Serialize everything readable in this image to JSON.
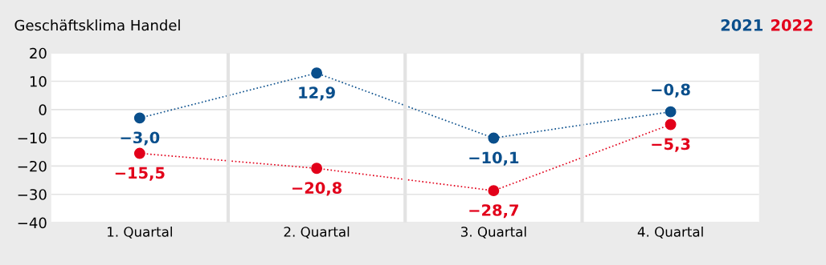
{
  "chart_data": {
    "type": "line",
    "title": "Geschäftsklima Handel",
    "categories": [
      "1. Quartal",
      "2. Quartal",
      "3. Quartal",
      "4. Quartal"
    ],
    "series": [
      {
        "name": "2021",
        "color": "#0a4f8c",
        "values": [
          -3.0,
          12.9,
          -10.1,
          -0.8
        ],
        "value_labels": [
          "−3,0",
          "12,9",
          "−10,1",
          "−0,8"
        ]
      },
      {
        "name": "2022",
        "color": "#e2001a",
        "values": [
          -15.5,
          -20.8,
          -28.7,
          -5.3
        ],
        "value_labels": [
          "−15,5",
          "−20,8",
          "−28,7",
          "−5,3"
        ]
      }
    ],
    "ylim": [
      -40,
      20
    ],
    "yticks": [
      {
        "value": -40,
        "label": "−40"
      },
      {
        "value": -30,
        "label": "−30"
      },
      {
        "value": -20,
        "label": "−20"
      },
      {
        "value": -10,
        "label": "−10"
      },
      0,
      10,
      20
    ],
    "grid": true,
    "legend": "top right",
    "marker": "circle",
    "line_style": "dotted"
  }
}
